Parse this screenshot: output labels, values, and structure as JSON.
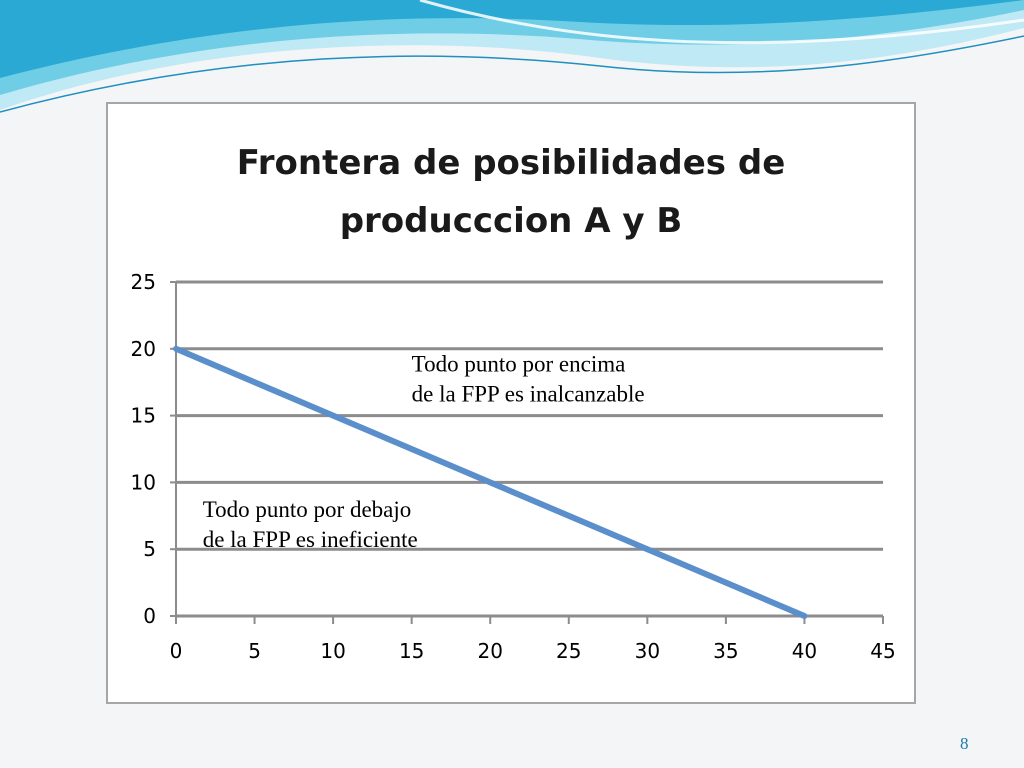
{
  "slide": {
    "page_number": "8"
  },
  "colors": {
    "line": "#5b8fcc",
    "gridline": "#8c8c8c",
    "banner_dark": "#1ea3cf",
    "banner_light": "#8fd8ea"
  },
  "chart_data": {
    "type": "line",
    "title": "Frontera de posibilidades de producccion A y B",
    "title_lines": [
      "Frontera de posibilidades de",
      "producccion A y B"
    ],
    "xlabel": "",
    "ylabel": "",
    "xlim": [
      0,
      45
    ],
    "ylim": [
      0,
      25
    ],
    "x_ticks": [
      0,
      5,
      10,
      15,
      20,
      25,
      30,
      35,
      40,
      45
    ],
    "y_ticks": [
      0,
      5,
      10,
      15,
      20,
      25
    ],
    "grid": "horizontal",
    "legend": "none",
    "series": [
      {
        "x": [
          0,
          40
        ],
        "y": [
          20,
          0
        ]
      }
    ],
    "annotations": [
      {
        "lines": [
          "Todo punto por encima",
          "de la FPP es inalcanzable"
        ],
        "x": 15,
        "y": 18.3
      },
      {
        "lines": [
          "Todo punto por debajo",
          "de la FPP es ineficiente"
        ],
        "x": 1.7,
        "y": 7.4
      }
    ]
  }
}
